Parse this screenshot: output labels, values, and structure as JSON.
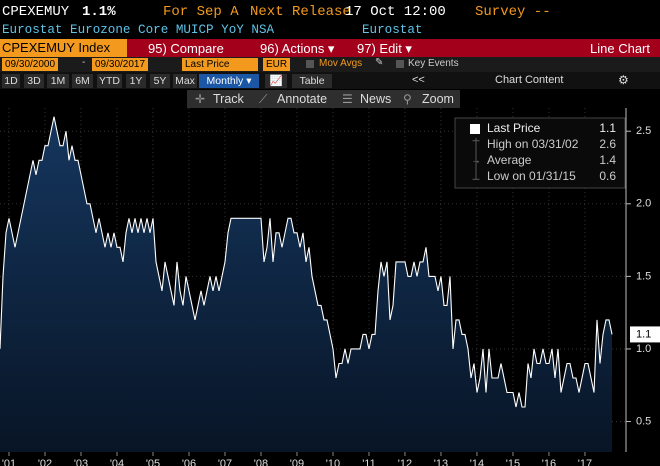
{
  "header": {
    "ticker": "CPEXEMUY",
    "last": "1.1%",
    "period_label": "For Sep A",
    "release_label": "Next Release",
    "release_time": "17 Oct 12:00",
    "survey": "Survey --",
    "description": "Eurostat Eurozone Core MUICP YoY NSA",
    "source": "Eurostat"
  },
  "toolbar": {
    "security": "CPEXEMUY Index",
    "compare": "95) Compare",
    "actions": "96) Actions ▾",
    "edit": "97) Edit ▾",
    "view": "Line Chart"
  },
  "controls": {
    "start": "09/30/2000",
    "end": "09/30/2017",
    "field": "Last Price",
    "currency": "EUR",
    "mov_avgs": "Mov Avgs",
    "key_events": "Key Events",
    "ranges": [
      "1D",
      "3D",
      "1M",
      "6M",
      "YTD",
      "1Y",
      "5Y",
      "Max"
    ],
    "frequency": "Monthly ▾",
    "table": "Table",
    "collapse": "<<",
    "chart_content": "Chart Content"
  },
  "tools": [
    "Track",
    "Annotate",
    "News",
    "Zoom"
  ],
  "chart_data": {
    "type": "line",
    "grid": true,
    "series": [
      {
        "name": "Last Price",
        "color": "#ffffff",
        "fill": "#0d2744",
        "values": [
          1.0,
          1.5,
          1.8,
          1.9,
          1.8,
          1.7,
          1.8,
          1.9,
          2.0,
          2.1,
          2.2,
          2.3,
          2.2,
          2.3,
          2.3,
          2.4,
          2.4,
          2.5,
          2.6,
          2.5,
          2.4,
          2.4,
          2.5,
          2.3,
          2.4,
          2.3,
          2.3,
          2.2,
          2.1,
          2.0,
          2.0,
          1.9,
          1.8,
          1.9,
          1.8,
          1.7,
          1.8,
          1.7,
          1.8,
          1.7,
          1.7,
          1.6,
          1.8,
          1.9,
          1.8,
          1.9,
          1.8,
          1.9,
          1.8,
          1.9,
          1.8,
          1.9,
          1.6,
          1.5,
          1.4,
          1.6,
          1.5,
          1.4,
          1.3,
          1.6,
          1.4,
          1.3,
          1.5,
          1.4,
          1.3,
          1.2,
          1.3,
          1.4,
          1.3,
          1.4,
          1.5,
          1.4,
          1.5,
          1.4,
          1.5,
          1.6,
          1.8,
          1.9,
          1.9,
          1.9,
          1.9,
          1.9,
          1.9,
          1.9,
          1.9,
          1.9,
          1.9,
          1.9,
          1.6,
          1.7,
          1.9,
          1.6,
          1.8,
          1.8,
          1.7,
          1.8,
          1.9,
          1.9,
          1.8,
          1.8,
          1.7,
          1.8,
          1.6,
          1.7,
          1.5,
          1.4,
          1.3,
          1.3,
          1.2,
          1.2,
          1.1,
          1.0,
          0.8,
          0.9,
          0.9,
          1.0,
          0.9,
          1.0,
          1.0,
          1.0,
          1.0,
          1.1,
          1.1,
          1.0,
          1.1,
          1.1,
          1.4,
          1.6,
          1.5,
          1.6,
          1.2,
          1.3,
          1.6,
          1.6,
          1.6,
          1.6,
          1.5,
          1.5,
          1.6,
          1.5,
          1.6,
          1.6,
          1.7,
          1.5,
          1.5,
          1.5,
          1.4,
          1.5,
          1.3,
          1.3,
          1.5,
          1.0,
          1.2,
          1.2,
          1.1,
          1.1,
          1.0,
          0.8,
          0.9,
          0.7,
          0.8,
          1.0,
          0.7,
          1.0,
          0.8,
          0.8,
          0.8,
          0.9,
          0.8,
          0.7,
          0.7,
          0.7,
          0.6,
          0.7,
          0.6,
          0.6,
          0.9,
          0.8,
          1.0,
          0.9,
          0.9,
          1.0,
          0.9,
          0.9,
          1.0,
          0.8,
          1.0,
          0.7,
          0.8,
          0.9,
          0.9,
          0.8,
          0.8,
          0.7,
          0.8,
          0.9,
          0.9,
          0.8,
          0.7,
          1.2,
          0.9,
          1.1,
          1.2,
          1.2,
          1.1
        ]
      }
    ],
    "stats": [
      {
        "label": "High on 03/31/02",
        "value": 2.6
      },
      {
        "label": "Average",
        "value": 1.4
      },
      {
        "label": "Low on 01/31/15",
        "value": 0.6
      }
    ],
    "xlim": [
      2000.75,
      2018.14
    ],
    "xticks": [
      {
        "value": 2001,
        "label": "'01"
      },
      {
        "value": 2002,
        "label": "'02"
      },
      {
        "value": 2003,
        "label": "'03"
      },
      {
        "value": 2004,
        "label": "'04"
      },
      {
        "value": 2005,
        "label": "'05"
      },
      {
        "value": 2006,
        "label": "'06"
      },
      {
        "value": 2007,
        "label": "'07"
      },
      {
        "value": 2008,
        "label": "'08"
      },
      {
        "value": 2009,
        "label": "'09"
      },
      {
        "value": 2010,
        "label": "'10"
      },
      {
        "value": 2011,
        "label": "'11"
      },
      {
        "value": 2012,
        "label": "'12"
      },
      {
        "value": 2013,
        "label": "'13"
      },
      {
        "value": 2014,
        "label": "'14"
      },
      {
        "value": 2015,
        "label": "'15"
      },
      {
        "value": 2016,
        "label": "'16"
      },
      {
        "value": 2017,
        "label": "'17"
      }
    ],
    "ylim": [
      0.29,
      2.66
    ],
    "yticks": [
      0.5,
      {
        "value": 1,
        "label": "1.0"
      },
      1.5,
      {
        "value": 2,
        "label": "2.0"
      },
      2.5
    ]
  }
}
